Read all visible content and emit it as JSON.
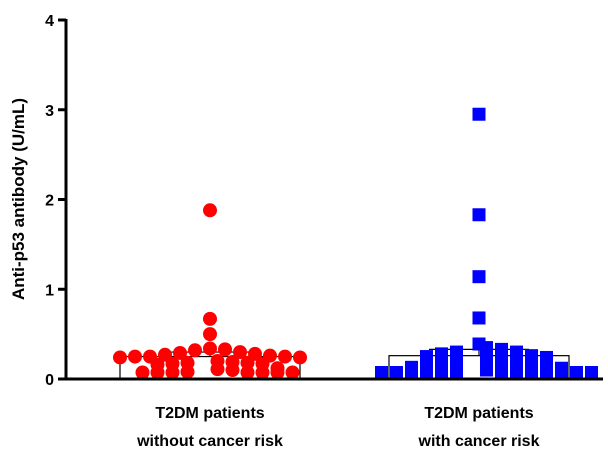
{
  "chart_data": {
    "type": "scatter",
    "ylabel": "Anti-p53 antibody (U/mL)",
    "ylim": [
      0,
      4
    ],
    "yticks": [
      "0",
      "1",
      "2",
      "3",
      "4"
    ],
    "grid": false,
    "categories": [
      [
        "T2DM patients",
        "without cancer risk"
      ],
      [
        "T2DM patients",
        "with cancer risk"
      ]
    ],
    "groups": [
      {
        "marker": "circle",
        "color": "#ff0000",
        "bar_value": 0.25,
        "error": 0.05,
        "values": [
          1.88,
          0.67,
          0.5,
          0.34,
          0.33,
          0.32,
          0.3,
          0.29,
          0.28,
          0.27,
          0.26,
          0.25,
          0.25,
          0.25,
          0.24,
          0.24,
          0.2,
          0.19,
          0.18,
          0.18,
          0.17,
          0.17,
          0.16,
          0.12,
          0.11,
          0.1,
          0.08,
          0.07,
          0.05,
          0.03,
          0.01,
          0.01,
          0.01,
          0.01
        ]
      },
      {
        "marker": "square",
        "color": "#0000ff",
        "bar_value": 0.26,
        "error": 0.07,
        "values": [
          2.95,
          1.83,
          1.14,
          0.68,
          0.39,
          0.35,
          0.33,
          0.3,
          0.3,
          0.28,
          0.26,
          0.25,
          0.24,
          0.23,
          0.22,
          0.21,
          0.21,
          0.2,
          0.18,
          0.17,
          0.15,
          0.13,
          0.12,
          0.1,
          0.08,
          0.06,
          0.05,
          0.03,
          0.02,
          0.02,
          0.01,
          0.01,
          0.01,
          0.01,
          0.01,
          0.01,
          0.01
        ]
      }
    ]
  }
}
